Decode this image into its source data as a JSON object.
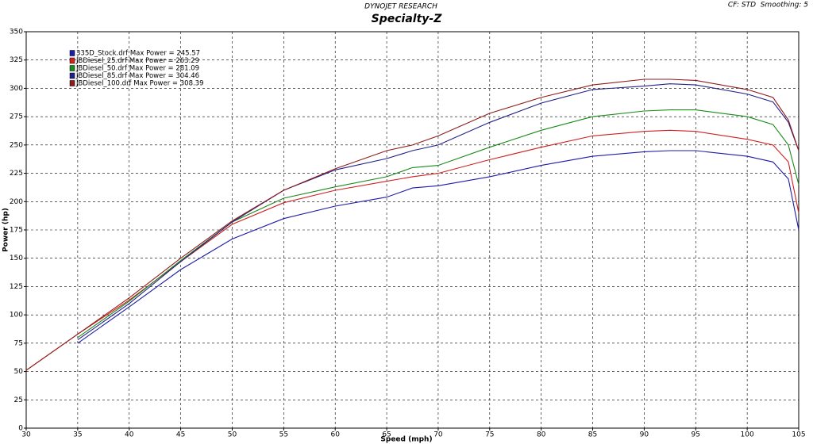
{
  "chart_data": {
    "type": "line",
    "supertitle": "DYNOJET RESEARCH",
    "title": "Specialty-Z",
    "annotation": "CF: STD  Smoothing: 5",
    "x_label": "Speed (mph)",
    "y_label": "Power (hp)",
    "x": [
      30,
      35,
      40,
      45,
      50,
      55,
      60,
      65,
      67.5,
      70,
      75,
      80,
      85,
      90,
      92.5,
      95,
      100,
      102.5,
      104,
      105
    ],
    "series": [
      {
        "name": "335D_Stock.drf Max Power = 245.57",
        "color": "#1c1ca8",
        "values": [
          null,
          75,
          107,
          140,
          167,
          185,
          196,
          204,
          212,
          214,
          222,
          232,
          240,
          244,
          245,
          245,
          240,
          235,
          220,
          175
        ]
      },
      {
        "name": "JBDiesel_25.drf Max Power = 263.29",
        "color": "#d02020",
        "values": [
          51,
          83,
          113,
          147,
          180,
          199,
          210,
          218,
          222,
          225,
          237,
          248,
          258,
          262,
          263,
          262,
          255,
          250,
          235,
          190
        ]
      },
      {
        "name": "JBDiesel_50.drf Max Power = 281.09",
        "color": "#1a8a1a",
        "values": [
          null,
          80,
          112,
          148,
          182,
          203,
          213,
          222,
          230,
          232,
          248,
          263,
          275,
          280,
          281,
          281,
          275,
          268,
          250,
          215
        ]
      },
      {
        "name": "JBDiesel_85.drf Max Power = 304.46",
        "color": "#20208a",
        "values": [
          null,
          78,
          110,
          147,
          182,
          210,
          228,
          238,
          245,
          250,
          270,
          287,
          299,
          302,
          304,
          303,
          295,
          288,
          270,
          245
        ]
      },
      {
        "name": "JBDiesel_100.drf Max Power = 308.39",
        "color": "#8e1c1c",
        "values": [
          51,
          83,
          115,
          150,
          183,
          210,
          229,
          245,
          250,
          258,
          278,
          292,
          303,
          308,
          308,
          307,
          299,
          292,
          272,
          245
        ]
      }
    ],
    "xlim": [
      30,
      105
    ],
    "ylim": [
      0,
      350
    ],
    "xticks": [
      30,
      35,
      40,
      45,
      50,
      55,
      60,
      65,
      70,
      75,
      80,
      85,
      90,
      95,
      100,
      105
    ],
    "yticks": [
      0,
      25,
      50,
      75,
      100,
      125,
      150,
      175,
      200,
      225,
      250,
      275,
      300,
      325,
      350
    ],
    "grid": true
  }
}
